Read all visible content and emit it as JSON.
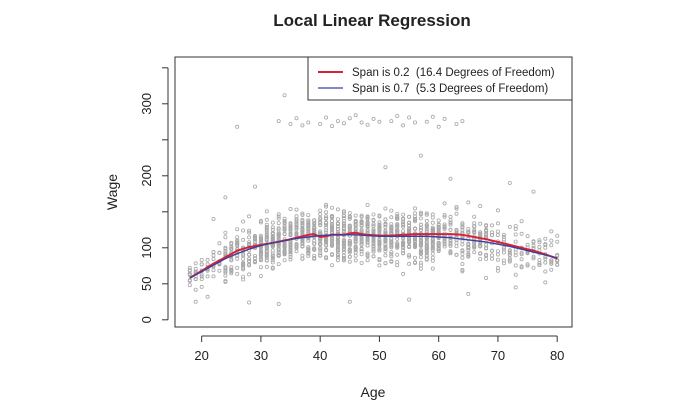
{
  "chart_data": {
    "type": "scatter",
    "title": "Local Linear Regression",
    "xlabel": "Age",
    "ylabel": "Wage",
    "xlim": [
      15.5,
      82.5
    ],
    "ylim": [
      -10,
      365
    ],
    "xticks": [
      20,
      30,
      40,
      50,
      60,
      70,
      80
    ],
    "yticks": [
      0,
      50,
      100,
      200,
      300
    ],
    "legend_position": "top-right",
    "point_color": "#a8a8a8",
    "series": [
      {
        "name": "Span is 0.2  (16.4 Degrees of Freedom)",
        "type": "line",
        "color": "#d62237",
        "x": [
          18,
          20,
          22,
          24,
          26,
          28,
          30,
          32,
          34,
          36,
          38,
          39,
          40,
          41,
          42,
          44,
          45,
          46,
          47,
          48,
          50,
          52,
          54,
          56,
          58,
          60,
          62,
          64,
          66,
          68,
          70,
          72,
          74,
          76,
          78,
          80
        ],
        "y": [
          58,
          68,
          78,
          87,
          96,
          101,
          104,
          107,
          110,
          114,
          118,
          119,
          115,
          116,
          118,
          118,
          120,
          121,
          119,
          118,
          117,
          117,
          118,
          119,
          119,
          119,
          119,
          118,
          115,
          112,
          108,
          104,
          100,
          96,
          91,
          85
        ]
      },
      {
        "name": "Span is 0.7  (5.3 Degrees of Freedom)",
        "type": "line",
        "color": "#3e3e9e",
        "x": [
          18,
          20,
          22,
          24,
          26,
          28,
          30,
          32,
          34,
          36,
          38,
          40,
          42,
          44,
          46,
          48,
          50,
          52,
          54,
          56,
          58,
          60,
          62,
          64,
          66,
          68,
          70,
          72,
          74,
          76,
          78,
          80
        ],
        "y": [
          58,
          67,
          76,
          85,
          92,
          98,
          103,
          107,
          110,
          113,
          115,
          117,
          118,
          118,
          118,
          117,
          116,
          116,
          116,
          116,
          116,
          115,
          114,
          112,
          110,
          108,
          105,
          102,
          98,
          94,
          90,
          86
        ]
      }
    ],
    "scatter_outliers": [
      [
        34,
        312
      ],
      [
        39,
        318
      ],
      [
        26,
        268
      ],
      [
        57,
        228
      ],
      [
        72,
        190
      ],
      [
        76,
        178
      ],
      [
        51,
        212
      ],
      [
        62,
        196
      ],
      [
        33,
        276
      ],
      [
        36,
        280
      ],
      [
        38,
        274
      ],
      [
        41,
        281
      ],
      [
        43,
        276
      ],
      [
        45,
        280
      ],
      [
        47,
        274
      ],
      [
        49,
        279
      ],
      [
        52,
        276
      ],
      [
        55,
        281
      ],
      [
        58,
        275
      ],
      [
        61,
        279
      ],
      [
        64,
        276
      ],
      [
        37,
        270
      ],
      [
        42,
        269
      ],
      [
        48,
        271
      ],
      [
        54,
        270
      ],
      [
        60,
        268
      ],
      [
        46,
        284
      ],
      [
        40,
        272
      ],
      [
        44,
        273
      ],
      [
        50,
        275
      ],
      [
        56,
        274
      ],
      [
        63,
        272
      ],
      [
        35,
        272
      ],
      [
        53,
        283
      ],
      [
        59,
        282
      ],
      [
        24,
        170
      ],
      [
        22,
        140
      ],
      [
        29,
        185
      ],
      [
        67,
        158
      ],
      [
        70,
        152
      ],
      [
        19,
        25
      ],
      [
        21,
        32
      ],
      [
        28,
        24
      ],
      [
        33,
        22
      ],
      [
        45,
        25
      ],
      [
        55,
        28
      ],
      [
        65,
        36
      ],
      [
        73,
        45
      ],
      [
        78,
        52
      ]
    ]
  }
}
